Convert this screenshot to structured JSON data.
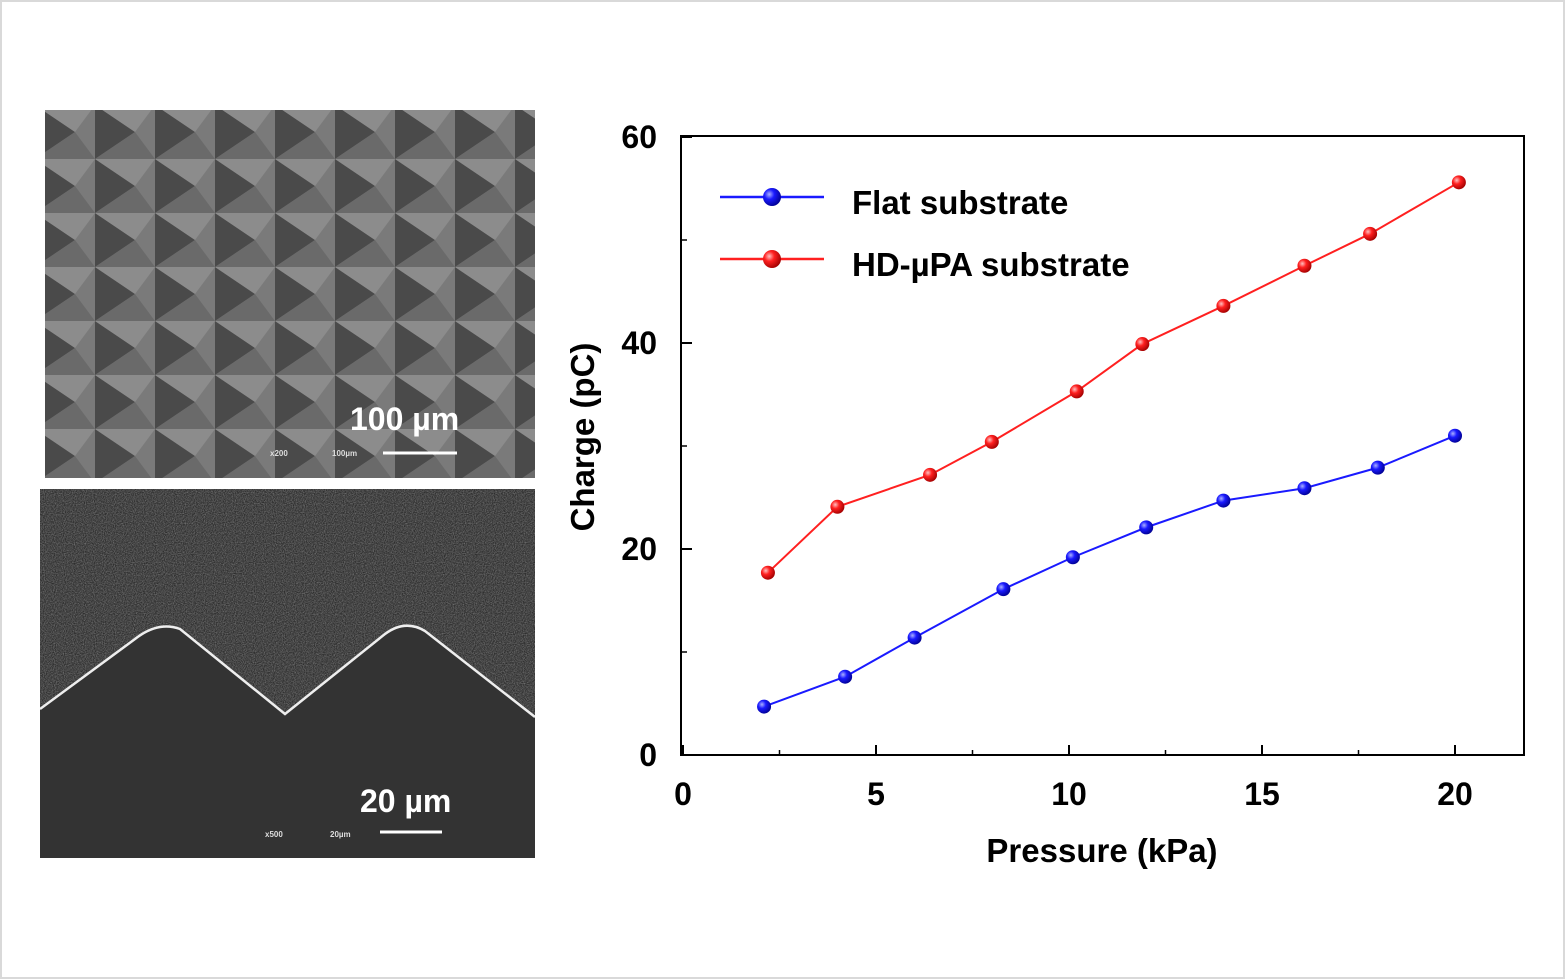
{
  "images": [
    {
      "name": "pyramid-array-sem",
      "scale_label": "100 µm",
      "mag": "x200",
      "bar_text": "100µm"
    },
    {
      "name": "cross-section-sem",
      "scale_label": "20 µm",
      "mag": "x500",
      "bar_text": "20µm"
    }
  ],
  "chart_data": {
    "type": "line",
    "title": "",
    "xlabel": "Pressure (kPa)",
    "ylabel": "Charge (pC)",
    "xlim": [
      0,
      22
    ],
    "ylim": [
      0,
      60
    ],
    "xticks": [
      0,
      5,
      10,
      15,
      20
    ],
    "yticks": [
      0,
      20,
      40,
      60
    ],
    "legend_position": "top-left",
    "series": [
      {
        "name": "Flat substrate",
        "color": "#1a1aff",
        "x": [
          2.1,
          4.2,
          6.0,
          8.3,
          10.1,
          12.0,
          14.0,
          16.1,
          18.0,
          20.0
        ],
        "y": [
          4.7,
          7.6,
          11.4,
          16.1,
          19.2,
          22.1,
          24.7,
          25.9,
          27.9,
          31.0
        ]
      },
      {
        "name": "HD-µPA substrate",
        "color": "#ff2020",
        "x": [
          2.2,
          4.0,
          6.4,
          8.0,
          10.2,
          11.9,
          14.0,
          16.1,
          17.8,
          20.1
        ],
        "y": [
          17.7,
          24.1,
          27.2,
          30.4,
          35.3,
          39.9,
          43.6,
          47.5,
          50.6,
          55.6
        ]
      }
    ]
  }
}
